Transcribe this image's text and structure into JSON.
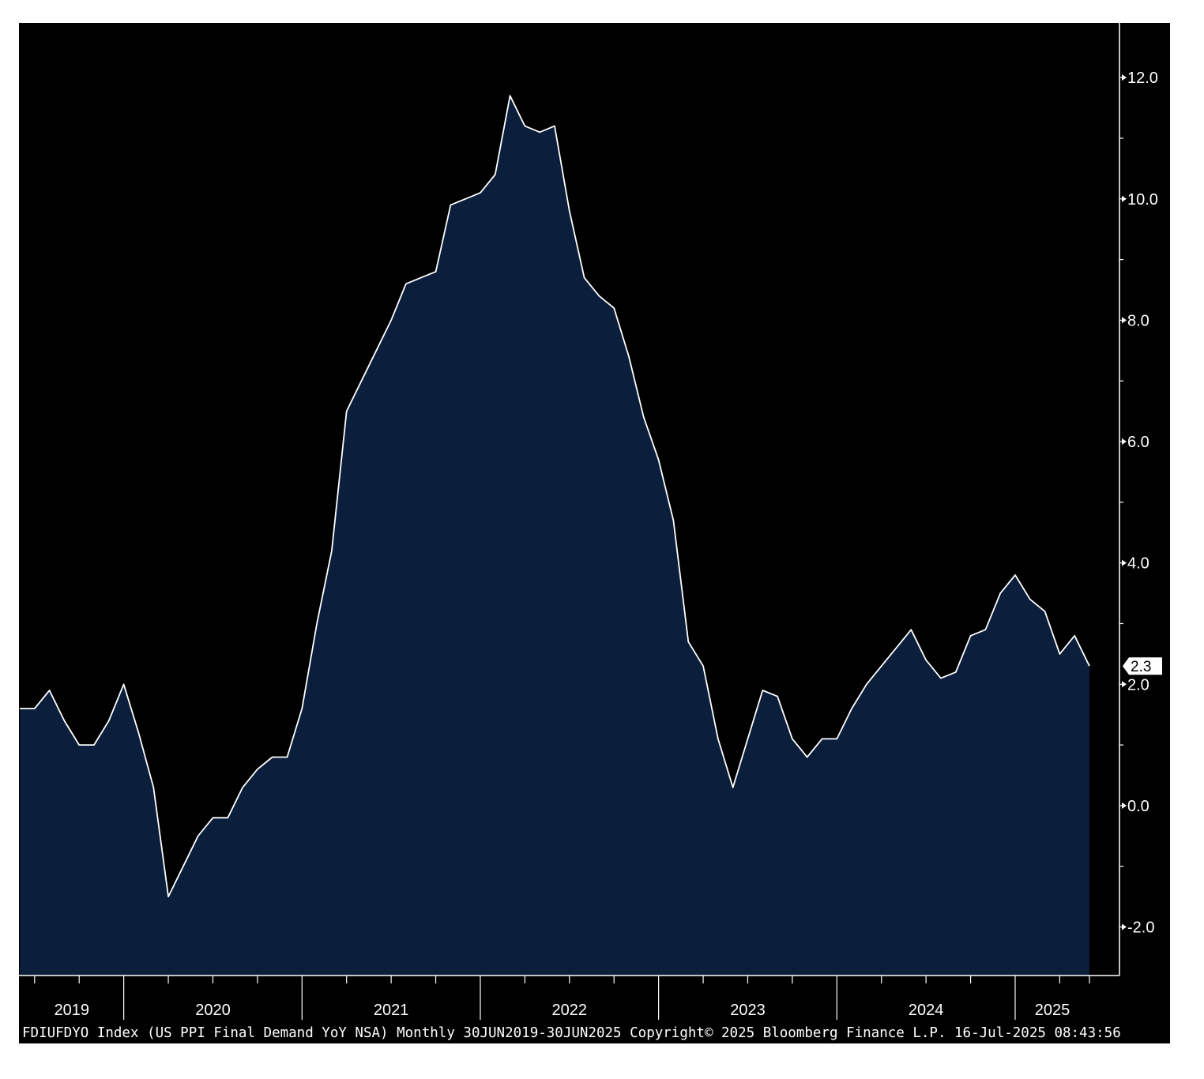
{
  "chart_data": {
    "type": "area",
    "title": "",
    "xlabel": "",
    "ylabel": "",
    "ylim": [
      -2.8,
      12.9
    ],
    "yticks": [
      -2.0,
      0.0,
      2.0,
      4.0,
      6.0,
      8.0,
      10.0,
      12.0
    ],
    "ytick_labels": [
      "-2.0",
      "0.0",
      "2.0",
      "4.0",
      "6.0",
      "8.0",
      "10.0",
      "12.0"
    ],
    "x_start": "2019-06",
    "x_end": "2025-06",
    "year_labels": [
      "2019",
      "2020",
      "2021",
      "2022",
      "2023",
      "2024",
      "2025"
    ],
    "series": [
      {
        "values": [
          1.6,
          1.6,
          1.9,
          1.4,
          1.0,
          1.0,
          1.4,
          2.0,
          1.2,
          0.3,
          -1.5,
          -1.0,
          -0.5,
          -0.2,
          -0.2,
          0.3,
          0.6,
          0.8,
          0.8,
          1.6,
          3.0,
          4.2,
          6.5,
          7.0,
          7.5,
          8.0,
          8.6,
          8.7,
          8.8,
          9.9,
          10.0,
          10.1,
          10.4,
          11.7,
          11.2,
          11.1,
          11.2,
          9.8,
          8.7,
          8.4,
          8.2,
          7.4,
          6.4,
          5.7,
          4.7,
          2.7,
          2.3,
          1.1,
          0.3,
          1.1,
          1.9,
          1.8,
          1.1,
          0.8,
          1.1,
          1.1,
          1.6,
          2.0,
          2.3,
          2.6,
          2.9,
          2.4,
          2.1,
          2.2,
          2.8,
          2.9,
          3.5,
          3.8,
          3.4,
          3.2,
          2.5,
          2.8,
          2.3
        ]
      }
    ],
    "last_value_label": "2.3",
    "colors": {
      "background": "#000000",
      "fill": "#0b1e3b",
      "line": "#ffffff"
    },
    "grid": false,
    "legend": "none"
  },
  "footer": {
    "text": "FDIUFDYO Index (US PPI Final Demand YoY NSA)  Monthly 30JUN2019-30JUN2025  Copyright© 2025 Bloomberg Finance L.P.  16-Jul-2025 08:43:56"
  }
}
